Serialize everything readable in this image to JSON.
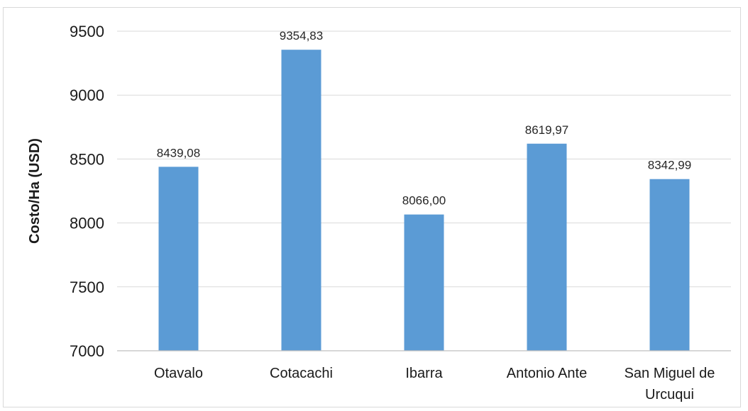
{
  "chart_data": {
    "type": "bar",
    "categories": [
      "Otavalo",
      "Cotacachi",
      "Ibarra",
      "Antonio Ante",
      "San Miguel de Urcuqui"
    ],
    "category_lines": [
      [
        "Otavalo"
      ],
      [
        "Cotacachi"
      ],
      [
        "Ibarra"
      ],
      [
        "Antonio Ante"
      ],
      [
        "San Miguel de",
        "Urcuqui"
      ]
    ],
    "values": [
      8439.08,
      9354.83,
      8066.0,
      8619.97,
      8342.99
    ],
    "data_labels": [
      "8439,08",
      "9354,83",
      "8066,00",
      "8619,97",
      "8342,99"
    ],
    "title": "",
    "xlabel": "",
    "ylabel": "Costo/Ha (USD)",
    "ylim": [
      7000,
      9500
    ],
    "yticks": [
      7000,
      7500,
      8000,
      8500,
      9000,
      9500
    ],
    "grid": true,
    "bar_color": "#5b9bd5",
    "legend": "none"
  }
}
